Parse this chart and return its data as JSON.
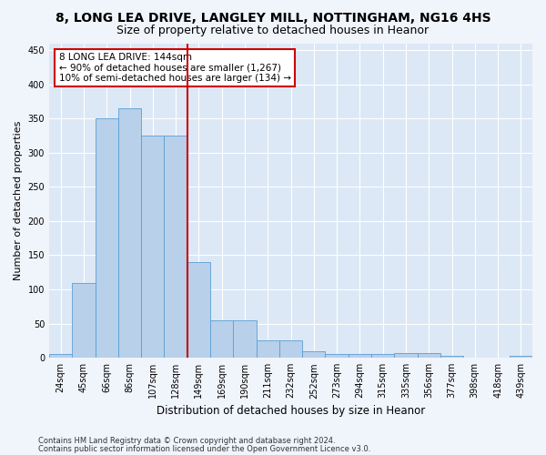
{
  "title": "8, LONG LEA DRIVE, LANGLEY MILL, NOTTINGHAM, NG16 4HS",
  "subtitle": "Size of property relative to detached houses in Heanor",
  "xlabel": "Distribution of detached houses by size in Heanor",
  "ylabel": "Number of detached properties",
  "categories": [
    "24sqm",
    "45sqm",
    "66sqm",
    "86sqm",
    "107sqm",
    "128sqm",
    "149sqm",
    "169sqm",
    "190sqm",
    "211sqm",
    "232sqm",
    "252sqm",
    "273sqm",
    "294sqm",
    "315sqm",
    "335sqm",
    "356sqm",
    "377sqm",
    "398sqm",
    "418sqm",
    "439sqm"
  ],
  "bar_heights": [
    5,
    110,
    350,
    365,
    325,
    325,
    140,
    55,
    55,
    25,
    25,
    10,
    5,
    5,
    5,
    7,
    7,
    3,
    0,
    0,
    3
  ],
  "bar_color": "#b8d0ea",
  "bar_edge_color": "#5a9fd4",
  "vline_x": 5.5,
  "vline_color": "#cc0000",
  "ylim": [
    0,
    460
  ],
  "yticks": [
    0,
    50,
    100,
    150,
    200,
    250,
    300,
    350,
    400,
    450
  ],
  "annotation_text": "8 LONG LEA DRIVE: 144sqm\n← 90% of detached houses are smaller (1,267)\n10% of semi-detached houses are larger (134) →",
  "annotation_box_color": "#ffffff",
  "annotation_box_edge": "#cc0000",
  "footnote1": "Contains HM Land Registry data © Crown copyright and database right 2024.",
  "footnote2": "Contains public sector information licensed under the Open Government Licence v3.0.",
  "fig_bg_color": "#f0f4fb",
  "plot_bg_color": "#dce8f5",
  "grid_color": "#ffffff",
  "title_fontsize": 10,
  "subtitle_fontsize": 9,
  "tick_fontsize": 7,
  "ylabel_fontsize": 8,
  "xlabel_fontsize": 8.5,
  "footnote_fontsize": 6,
  "annotation_fontsize": 7.5
}
